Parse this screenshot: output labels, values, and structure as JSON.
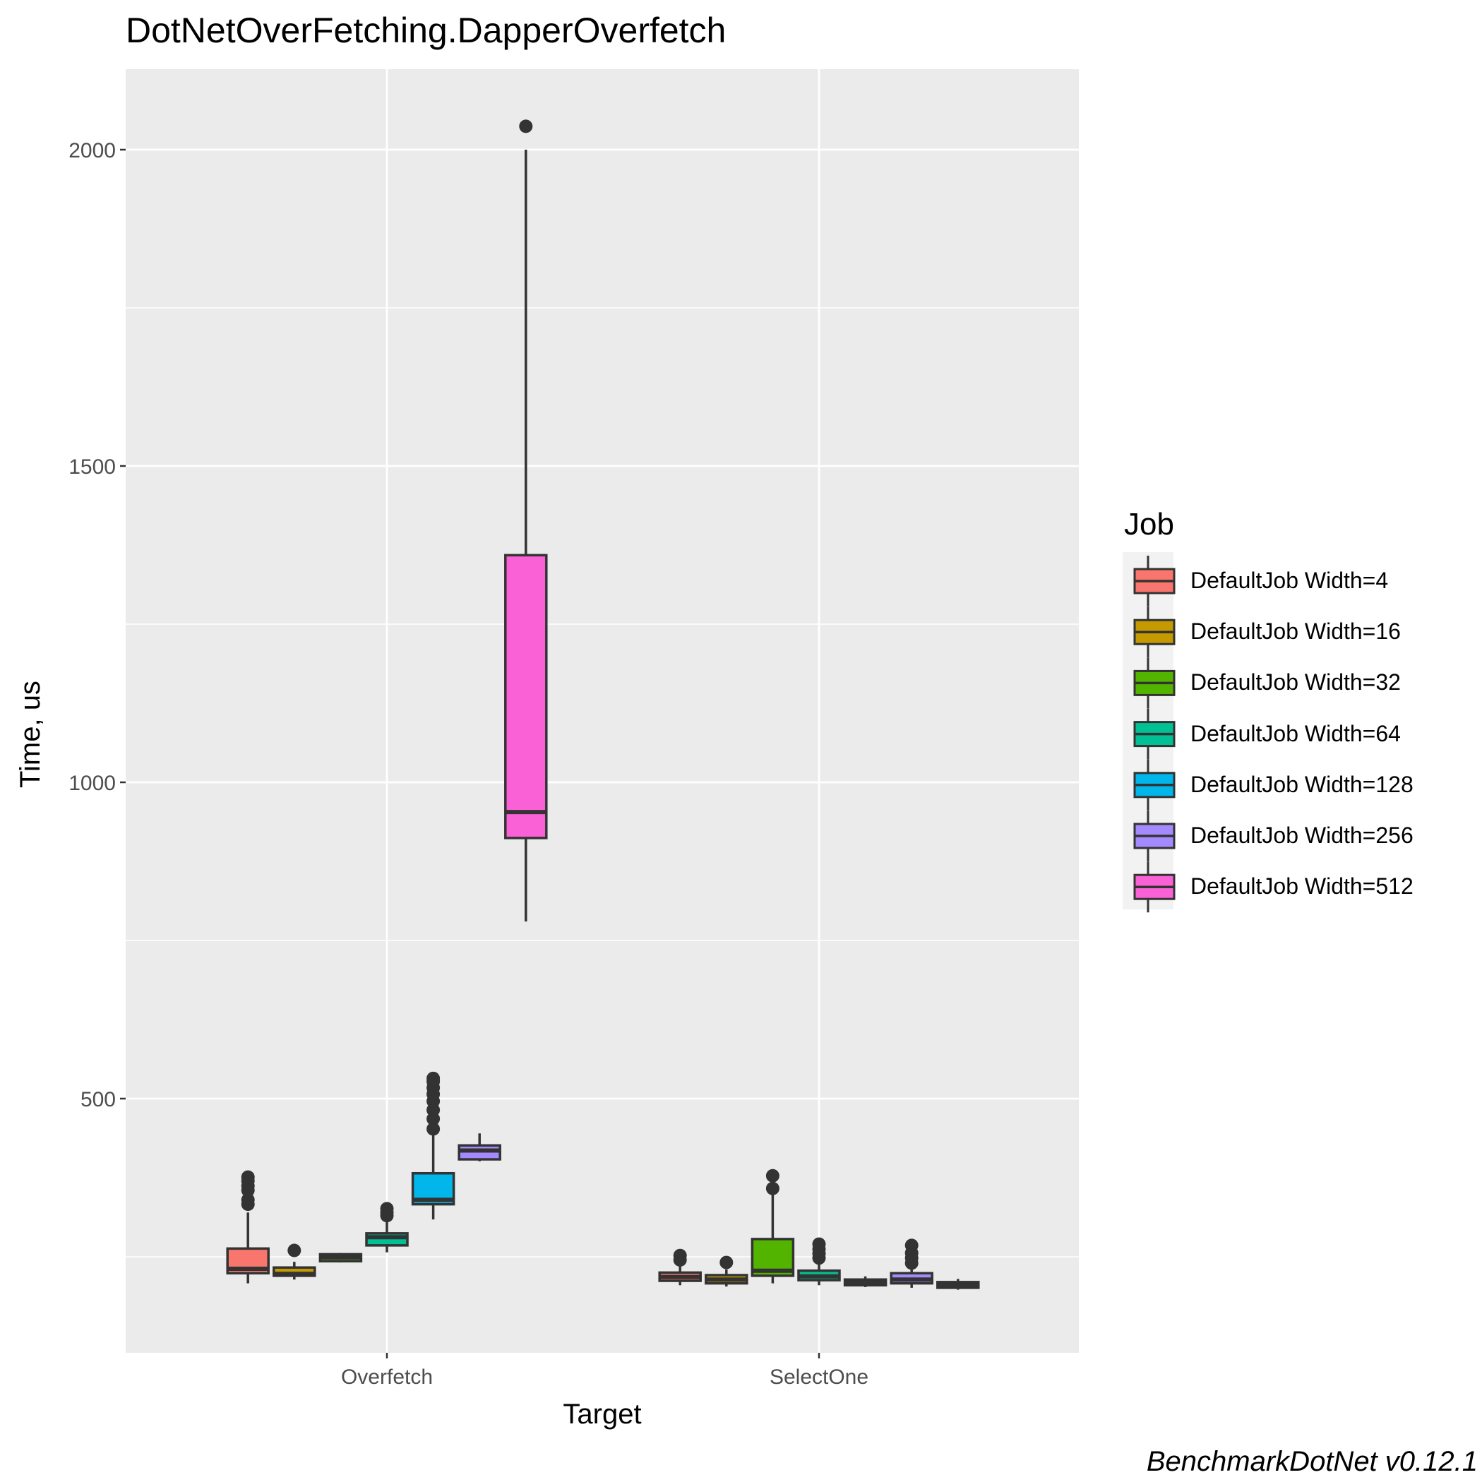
{
  "chart_data": {
    "type": "boxplot",
    "title": "DotNetOverFetching.DapperOverfetch",
    "xlabel": "Target",
    "ylabel": "Time, us",
    "ylim": [
      40,
      2110
    ],
    "yticks": [
      500,
      1000,
      1500,
      2000
    ],
    "yticklabels": [
      "500",
      "1000",
      "1500",
      "2000"
    ],
    "categories": [
      "Overfetch",
      "SelectOne"
    ],
    "grid": true,
    "legend": {
      "title": "Job",
      "position": "right"
    },
    "series": [
      {
        "name": "DefaultJob Width=4",
        "color": "#F8766D",
        "boxes": [
          {
            "category": "Overfetch",
            "q1": 224,
            "median": 231,
            "q3": 263,
            "whisker_low": 208,
            "whisker_high": 320,
            "outliers": [
              333,
              340,
              355,
              362,
              370,
              376
            ]
          },
          {
            "category": "SelectOne",
            "q1": 212,
            "median": 218,
            "q3": 225,
            "whisker_low": 205,
            "whisker_high": 235,
            "outliers": [
              245,
              252
            ]
          }
        ]
      },
      {
        "name": "DefaultJob Width=16",
        "color": "#C49A00",
        "boxes": [
          {
            "category": "Overfetch",
            "q1": 220,
            "median": 223,
            "q3": 233,
            "whisker_low": 214,
            "whisker_high": 242,
            "outliers": [
              260
            ]
          },
          {
            "category": "SelectOne",
            "q1": 208,
            "median": 214,
            "q3": 221,
            "whisker_low": 203,
            "whisker_high": 230,
            "outliers": [
              241
            ]
          }
        ]
      },
      {
        "name": "DefaultJob Width=32",
        "color": "#53B400",
        "boxes": [
          {
            "category": "Overfetch",
            "q1": 243,
            "median": 249,
            "q3": 254,
            "whisker_low": 241,
            "whisker_high": 256,
            "outliers": []
          },
          {
            "category": "SelectOne",
            "q1": 220,
            "median": 228,
            "q3": 278,
            "whisker_low": 208,
            "whisker_high": 350,
            "outliers": [
              358,
              378
            ]
          }
        ]
      },
      {
        "name": "DefaultJob Width=64",
        "color": "#00C094",
        "boxes": [
          {
            "category": "Overfetch",
            "q1": 268,
            "median": 281,
            "q3": 287,
            "whisker_low": 257,
            "whisker_high": 306,
            "outliers": [
              315,
              320,
              326
            ]
          },
          {
            "category": "SelectOne",
            "q1": 213,
            "median": 219,
            "q3": 228,
            "whisker_low": 205,
            "whisker_high": 242,
            "outliers": [
              248,
              255,
              262,
              270
            ]
          }
        ]
      },
      {
        "name": "DefaultJob Width=128",
        "color": "#00B6EB",
        "boxes": [
          {
            "category": "Overfetch",
            "q1": 333,
            "median": 340,
            "q3": 382,
            "whisker_low": 309,
            "whisker_high": 445,
            "outliers": [
              452,
              468,
              482,
              496,
              507,
              517,
              527,
              532
            ]
          },
          {
            "category": "SelectOne",
            "q1": 205,
            "median": 209,
            "q3": 214,
            "whisker_low": 202,
            "whisker_high": 219,
            "outliers": []
          }
        ]
      },
      {
        "name": "DefaultJob Width=256",
        "color": "#A58AFF",
        "boxes": [
          {
            "category": "Overfetch",
            "q1": 404,
            "median": 418,
            "q3": 426,
            "whisker_low": 401,
            "whisker_high": 445,
            "outliers": []
          },
          {
            "category": "SelectOne",
            "q1": 208,
            "median": 214,
            "q3": 224,
            "whisker_low": 201,
            "whisker_high": 232,
            "outliers": [
              240,
              248,
              256,
              268
            ]
          }
        ]
      },
      {
        "name": "DefaultJob Width=512",
        "color": "#FB61D7",
        "boxes": [
          {
            "category": "Overfetch",
            "q1": 912,
            "median": 953,
            "q3": 1359,
            "whisker_low": 780,
            "whisker_high": 2000,
            "outliers": [
              2037
            ]
          },
          {
            "category": "SelectOne",
            "q1": 201,
            "median": 205,
            "q3": 210,
            "whisker_low": 198,
            "whisker_high": 215,
            "outliers": []
          }
        ]
      }
    ]
  },
  "legend": {
    "title": "Job",
    "items": [
      "DefaultJob Width=4",
      "DefaultJob Width=16",
      "DefaultJob Width=32",
      "DefaultJob Width=64",
      "DefaultJob Width=128",
      "DefaultJob Width=256",
      "DefaultJob Width=512"
    ]
  },
  "footer": "BenchmarkDotNet v0.12.1"
}
